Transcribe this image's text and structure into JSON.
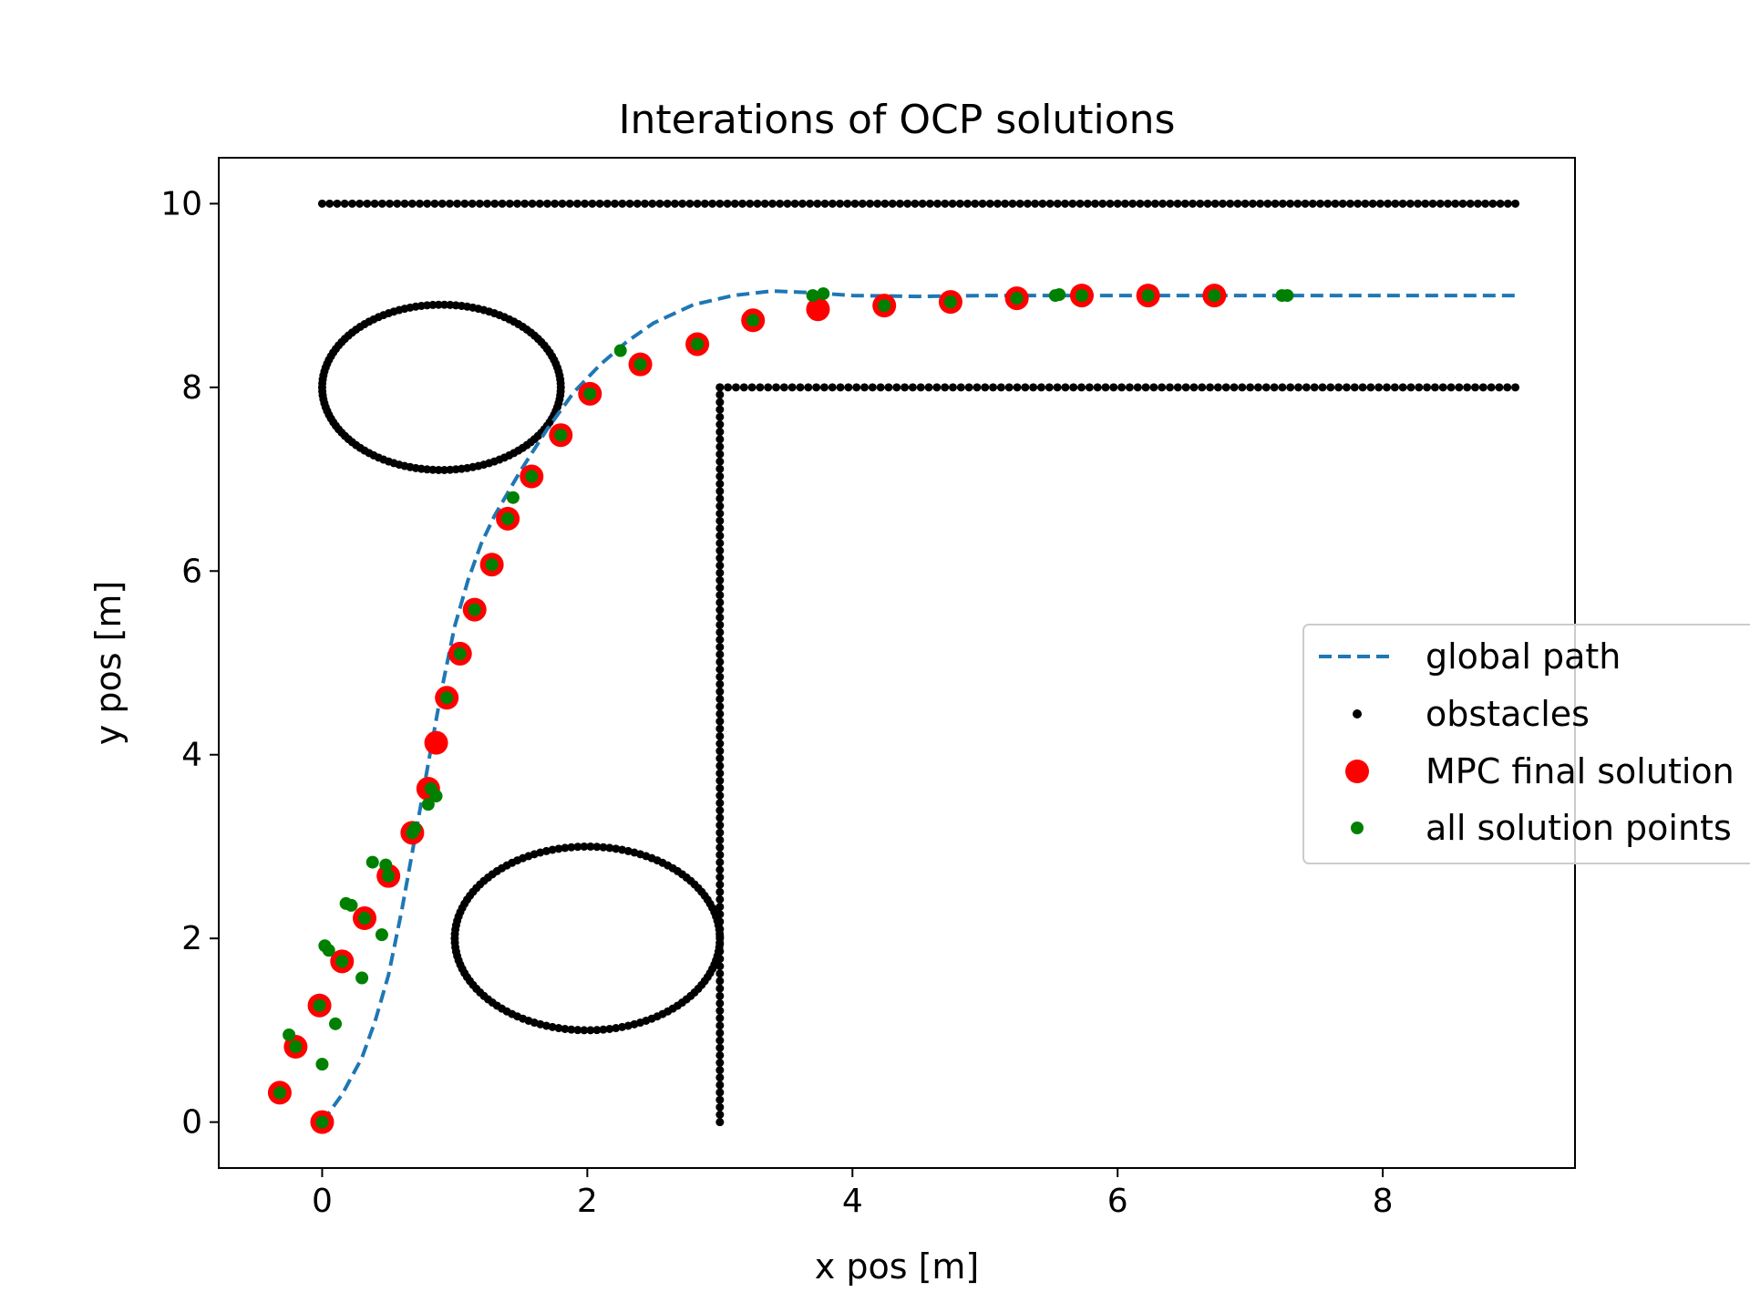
{
  "chart_data": {
    "type": "scatter",
    "title": "Interations of OCP solutions",
    "xlabel": "x pos [m]",
    "ylabel": "y pos [m]",
    "xlim": [
      -0.78,
      9.45
    ],
    "ylim": [
      -0.5,
      10.5
    ],
    "xticks": [
      0,
      2,
      4,
      6,
      8
    ],
    "yticks": [
      0,
      2,
      4,
      6,
      8,
      10
    ],
    "xtick_labels": [
      "0",
      "2",
      "4",
      "6",
      "8"
    ],
    "ytick_labels": [
      "0",
      "2",
      "4",
      "6",
      "8",
      "10"
    ],
    "grid": false,
    "legend_position": "center-right",
    "colors": {
      "global_path": "#1f77b4",
      "obstacles": "#000000",
      "mpc_final": "#ff0000",
      "all_points": "#008000"
    },
    "series": [
      {
        "name": "global path",
        "kind": "dashed-line",
        "x": [
          0,
          0.15,
          0.3,
          0.4,
          0.5,
          0.6,
          0.7,
          0.8,
          0.9,
          1.0,
          1.1,
          1.2,
          1.3,
          1.5,
          1.7,
          1.9,
          2.1,
          2.3,
          2.5,
          2.8,
          3.1,
          3.4,
          3.7,
          4.0,
          4.5,
          5.0,
          5.5,
          6.0,
          7.0,
          8.0,
          9.0
        ],
        "y": [
          0,
          0.3,
          0.7,
          1.1,
          1.6,
          2.3,
          3.1,
          3.9,
          4.7,
          5.4,
          5.9,
          6.3,
          6.6,
          7.1,
          7.55,
          7.95,
          8.25,
          8.5,
          8.7,
          8.9,
          9.0,
          9.05,
          9.03,
          9.0,
          8.99,
          9.0,
          9.0,
          9.0,
          9.0,
          9.0,
          9.0
        ]
      },
      {
        "name": "obstacles",
        "kind": "points",
        "shapes": [
          {
            "type": "hline",
            "x": [
              0,
              9
            ],
            "y": 10,
            "n": 160
          },
          {
            "type": "hline",
            "x": [
              3,
              9
            ],
            "y": 8,
            "n": 100
          },
          {
            "type": "vline",
            "x": 3,
            "y": [
              0,
              8
            ],
            "n": 100
          },
          {
            "type": "ellipse",
            "cx": 0.9,
            "cy": 8,
            "rx": 0.9,
            "ry": 0.9,
            "n": 130
          },
          {
            "type": "ellipse",
            "cx": 2,
            "cy": 2,
            "rx": 1,
            "ry": 1,
            "n": 130
          }
        ]
      },
      {
        "name": "MPC final solution",
        "kind": "big-dots",
        "x": [
          0,
          -0.32,
          -0.2,
          -0.02,
          0.15,
          0.32,
          0.5,
          0.68,
          0.8,
          0.86,
          0.94,
          1.04,
          1.15,
          1.28,
          1.4,
          1.58,
          1.8,
          2.02,
          2.4,
          2.83,
          3.25,
          3.74,
          4.24,
          4.74,
          5.24,
          5.73,
          6.23,
          6.73
        ],
        "y": [
          0,
          0.32,
          0.82,
          1.27,
          1.75,
          2.22,
          2.68,
          3.15,
          3.63,
          4.13,
          4.62,
          5.1,
          5.58,
          6.07,
          6.57,
          7.03,
          7.48,
          7.93,
          8.25,
          8.47,
          8.73,
          8.85,
          8.89,
          8.93,
          8.97,
          9.0,
          9.0,
          9.0
        ]
      },
      {
        "name": "all solution points",
        "kind": "small-dots",
        "x": [
          0,
          -0.32,
          -0.25,
          -0.2,
          -0.02,
          0,
          0.02,
          0.05,
          0.1,
          0.15,
          0.18,
          0.22,
          0.3,
          0.32,
          0.38,
          0.45,
          0.48,
          0.5,
          0.68,
          0.7,
          0.8,
          0.82,
          0.86,
          0.94,
          1.04,
          1.15,
          1.28,
          1.4,
          1.44,
          1.58,
          1.8,
          2.02,
          2.25,
          2.4,
          2.83,
          3.25,
          3.7,
          3.78,
          4.24,
          4.74,
          5.24,
          5.53,
          5.56,
          5.73,
          6.23,
          6.73,
          7.24,
          7.28
        ],
        "y": [
          0,
          0.32,
          0.95,
          0.82,
          1.27,
          0.63,
          1.92,
          1.87,
          1.07,
          1.75,
          2.38,
          2.36,
          1.57,
          2.22,
          2.83,
          2.04,
          2.8,
          2.68,
          3.15,
          3.2,
          3.46,
          3.63,
          3.55,
          4.62,
          5.1,
          5.58,
          6.07,
          6.57,
          6.8,
          7.03,
          7.48,
          7.93,
          8.4,
          8.25,
          8.47,
          8.73,
          9.0,
          9.02,
          8.89,
          8.93,
          8.97,
          9.0,
          9.01,
          9.0,
          9.0,
          9.0,
          9.0,
          9.0
        ]
      }
    ]
  }
}
